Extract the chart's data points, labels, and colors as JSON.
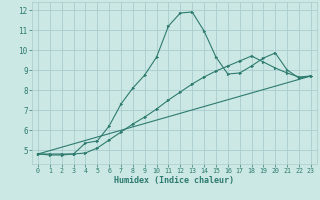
{
  "xlabel": "Humidex (Indice chaleur)",
  "bg_color": "#cce8e5",
  "grid_color": "#aacccc",
  "line_color": "#2d7b6e",
  "xlim": [
    -0.5,
    23.5
  ],
  "ylim": [
    4.3,
    12.4
  ],
  "xticks": [
    0,
    1,
    2,
    3,
    4,
    5,
    6,
    7,
    8,
    9,
    10,
    11,
    12,
    13,
    14,
    15,
    16,
    17,
    18,
    19,
    20,
    21,
    22,
    23
  ],
  "yticks": [
    5,
    6,
    7,
    8,
    9,
    10,
    11,
    12
  ],
  "line1_x": [
    0,
    1,
    2,
    3,
    4,
    5,
    6,
    7,
    8,
    9,
    10,
    11,
    12,
    13,
    14,
    15,
    16,
    17,
    18,
    19,
    20,
    21,
    22,
    23
  ],
  "line1_y": [
    4.8,
    4.75,
    4.75,
    4.8,
    5.35,
    5.45,
    6.2,
    7.3,
    8.1,
    8.75,
    9.65,
    11.2,
    11.85,
    11.9,
    10.95,
    9.65,
    8.8,
    8.85,
    9.2,
    9.6,
    9.85,
    9.0,
    8.6,
    8.7
  ],
  "line2_x": [
    0,
    1,
    2,
    3,
    4,
    5,
    6,
    7,
    8,
    9,
    10,
    11,
    12,
    13,
    14,
    15,
    16,
    17,
    18,
    19,
    20,
    21,
    22,
    23
  ],
  "line2_y": [
    4.8,
    4.8,
    4.8,
    4.8,
    4.85,
    5.1,
    5.5,
    5.9,
    6.3,
    6.65,
    7.05,
    7.5,
    7.9,
    8.3,
    8.65,
    8.95,
    9.2,
    9.45,
    9.7,
    9.4,
    9.1,
    8.85,
    8.65,
    8.7
  ],
  "line3_x": [
    0,
    23
  ],
  "line3_y": [
    4.8,
    8.7
  ],
  "figsize": [
    3.2,
    2.0
  ],
  "dpi": 100
}
